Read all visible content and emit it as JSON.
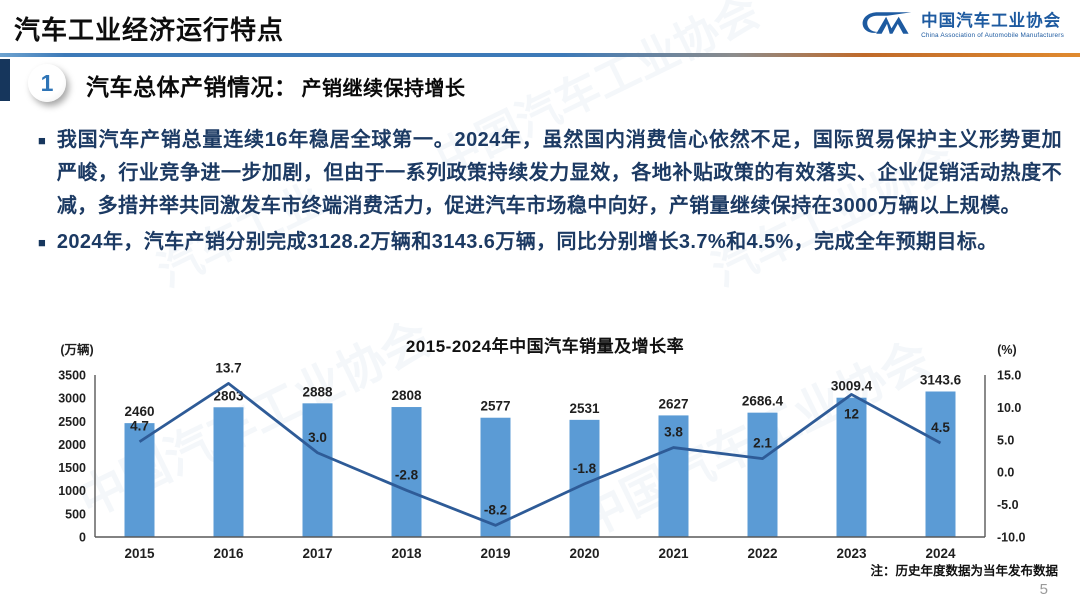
{
  "header": {
    "title": "汽车工业经济运行特点",
    "logo": {
      "name_cn": "中国汽车工业协会",
      "name_en": "China Association of Automobile Manufacturers"
    }
  },
  "section": {
    "number": "1",
    "title": "汽车总体产销情况：",
    "subtitle": "产销继续保持增长"
  },
  "bullets": [
    "我国汽车产销总量连续16年稳居全球第一。2024年，虽然国内消费信心依然不足，国际贸易保护主义形势更加严峻，行业竞争进一步加剧，但由于一系列政策持续发力显效，各地补贴政策的有效落实、企业促销活动热度不减，多措并举共同激发车市终端消费活力，促进汽车市场稳中向好，产销量继续保持在3000万辆以上规模。",
    "2024年，汽车产销分别完成3128.2万辆和3143.6万辆，同比分别增长3.7%和4.5%，完成全年预期目标。"
  ],
  "chart_data": {
    "type": "bar",
    "title": "2015-2024年中国汽车销量及增长率",
    "categories": [
      "2015",
      "2016",
      "2017",
      "2018",
      "2019",
      "2020",
      "2021",
      "2022",
      "2023",
      "2024"
    ],
    "series": [
      {
        "name": "销量(万辆)",
        "type": "bar",
        "values": [
          2460,
          2803,
          2888,
          2808,
          2577,
          2531,
          2627,
          2686.4,
          3009.4,
          3143.6
        ],
        "labels": [
          "2460",
          "2803",
          "2888",
          "2808",
          "2577",
          "2531",
          "2627",
          "2686.4",
          "3009.4",
          "3143.6"
        ]
      },
      {
        "name": "增长率(%)",
        "type": "line",
        "values": [
          4.7,
          13.7,
          3.0,
          -2.8,
          -8.2,
          -1.8,
          3.8,
          2.1,
          12,
          4.5
        ],
        "labels": [
          "4.7",
          "13.7",
          "3.0",
          "-2.8",
          "-8.2",
          "-1.8",
          "3.8",
          "2.1",
          "12",
          "4.5"
        ]
      }
    ],
    "left_axis": {
      "label": "(万辆)",
      "min": 0,
      "max": 3500,
      "ticks": [
        "3500",
        "3000",
        "2500",
        "2000",
        "1500",
        "1000",
        "500",
        "0"
      ]
    },
    "right_axis": {
      "label": "(%)",
      "min": -10,
      "max": 15,
      "ticks": [
        "15.0",
        "10.0",
        "5.0",
        "0.0",
        "-5.0",
        "-10.0"
      ]
    },
    "grid": false,
    "legend": "none",
    "colors": {
      "bar": "#5b9bd5",
      "line": "#2e5b97",
      "label": "#1f1f1f",
      "axis": "#595959"
    }
  },
  "footer": {
    "note": "注：历史年度数据为当年发布数据",
    "page_number": "5"
  }
}
